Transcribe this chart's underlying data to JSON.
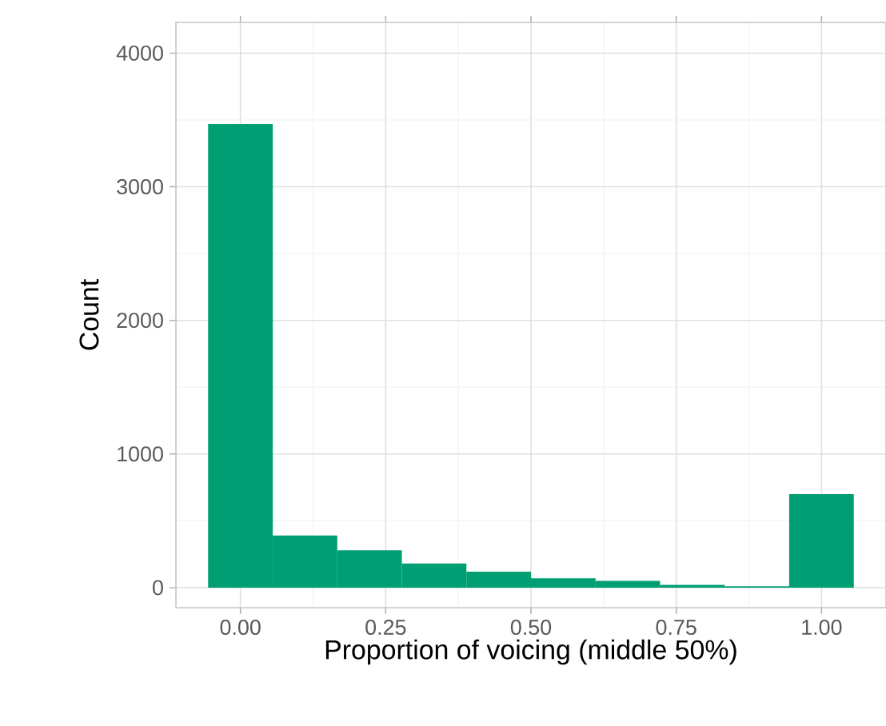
{
  "chart_data": {
    "type": "histogram",
    "xlabel": "Proportion of voicing (middle 50%)",
    "ylabel": "Count",
    "bins": [
      -0.0556,
      0.0556,
      0.1667,
      0.2778,
      0.3889,
      0.5,
      0.6111,
      0.7222,
      0.8333,
      0.9444,
      1.0556
    ],
    "values": [
      3470,
      390,
      280,
      180,
      120,
      70,
      50,
      20,
      10,
      700
    ],
    "color": "#009e73",
    "xlim": [
      -0.111,
      1.111
    ],
    "ylim": [
      -150,
      4230
    ],
    "xticks": [
      {
        "value": 0,
        "label": "0.00"
      },
      {
        "value": 0.25,
        "label": "0.25"
      },
      {
        "value": 0.5,
        "label": "0.50"
      },
      {
        "value": 0.75,
        "label": "0.75"
      },
      {
        "value": 1,
        "label": "1.00"
      }
    ],
    "yticks": [
      0,
      1000,
      2000,
      3000,
      4000
    ],
    "grid": true
  }
}
